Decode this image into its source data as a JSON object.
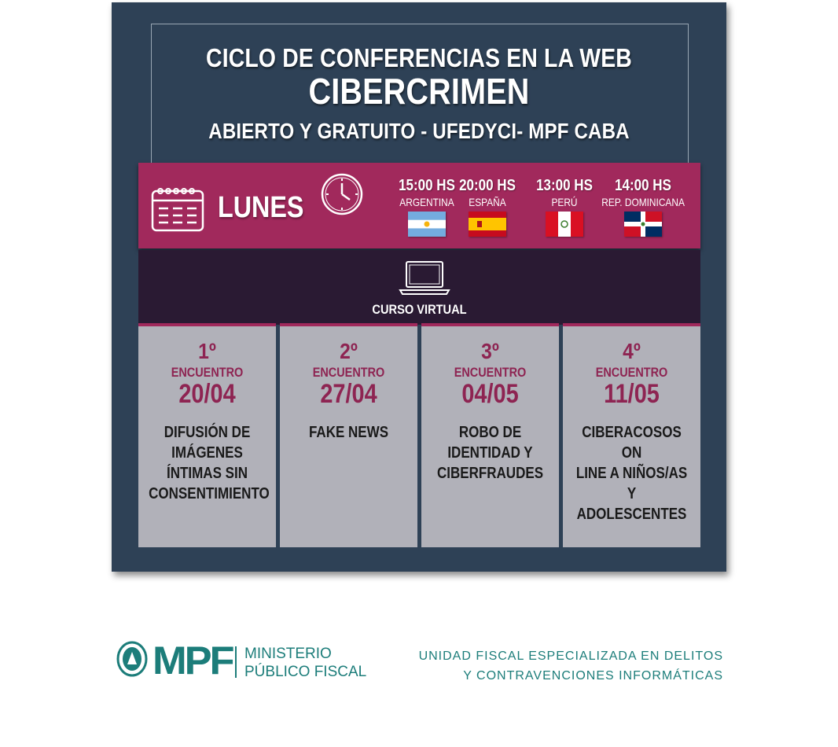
{
  "header": {
    "line1": "CICLO DE CONFERENCIAS EN LA WEB",
    "line2": "CIBERCRIMEN",
    "line3": "ABIERTO Y GRATUITO - UFEDYCI- MPF CABA"
  },
  "schedule": {
    "day": "LUNES",
    "calendar_icon": "calendar-icon",
    "clock_icon": "clock-icon",
    "times": [
      {
        "hour": "15:00 HS",
        "country": "ARGENTINA",
        "flag": "argentina-flag-icon"
      },
      {
        "hour": "20:00 HS",
        "country": "ESPAÑA",
        "flag": "spain-flag-icon"
      },
      {
        "hour": "13:00 HS",
        "country": "PERÚ",
        "flag": "peru-flag-icon"
      },
      {
        "hour": "14:00 HS",
        "country": "REP. DOMINICANA",
        "flag": "dominican-republic-flag-icon"
      }
    ]
  },
  "virtual": {
    "label": "CURSO VIRTUAL",
    "icon": "laptop-icon"
  },
  "sessions": [
    {
      "number": "1º",
      "label": "ENCUENTRO",
      "date": "20/04",
      "topic": [
        "DIFUSIÓN DE",
        "IMÁGENES",
        "ÍNTIMAS SIN",
        "CONSENTIMIENTO"
      ]
    },
    {
      "number": "2º",
      "label": "ENCUENTRO",
      "date": "27/04",
      "topic": [
        "FAKE NEWS"
      ]
    },
    {
      "number": "3º",
      "label": "ENCUENTRO",
      "date": "04/05",
      "topic": [
        "ROBO DE",
        "IDENTIDAD Y",
        "CIBERFRAUDES"
      ]
    },
    {
      "number": "4º",
      "label": "ENCUENTRO",
      "date": "11/05",
      "topic": [
        "CIBERACOSOS ON",
        "LINE A NIÑOS/AS",
        "Y ADOLESCENTES"
      ]
    }
  ],
  "footer": {
    "logo_text": "MPF",
    "org_line1": "MINISTERIO",
    "org_line2": "PÚBLICO FISCAL",
    "unit_line1": "UNIDAD FISCAL ESPECIALIZADA EN DELITOS",
    "unit_line2": "Y CONTRAVENCIONES INFORMÁTICAS"
  },
  "colors": {
    "poster_bg": "#2e4156",
    "band_magenta": "#a1295c",
    "virtual_dark": "#2a1a33",
    "card_gray": "#b1b1b9",
    "accent_text": "#8e2452",
    "footer_teal": "#1c7d7a"
  }
}
